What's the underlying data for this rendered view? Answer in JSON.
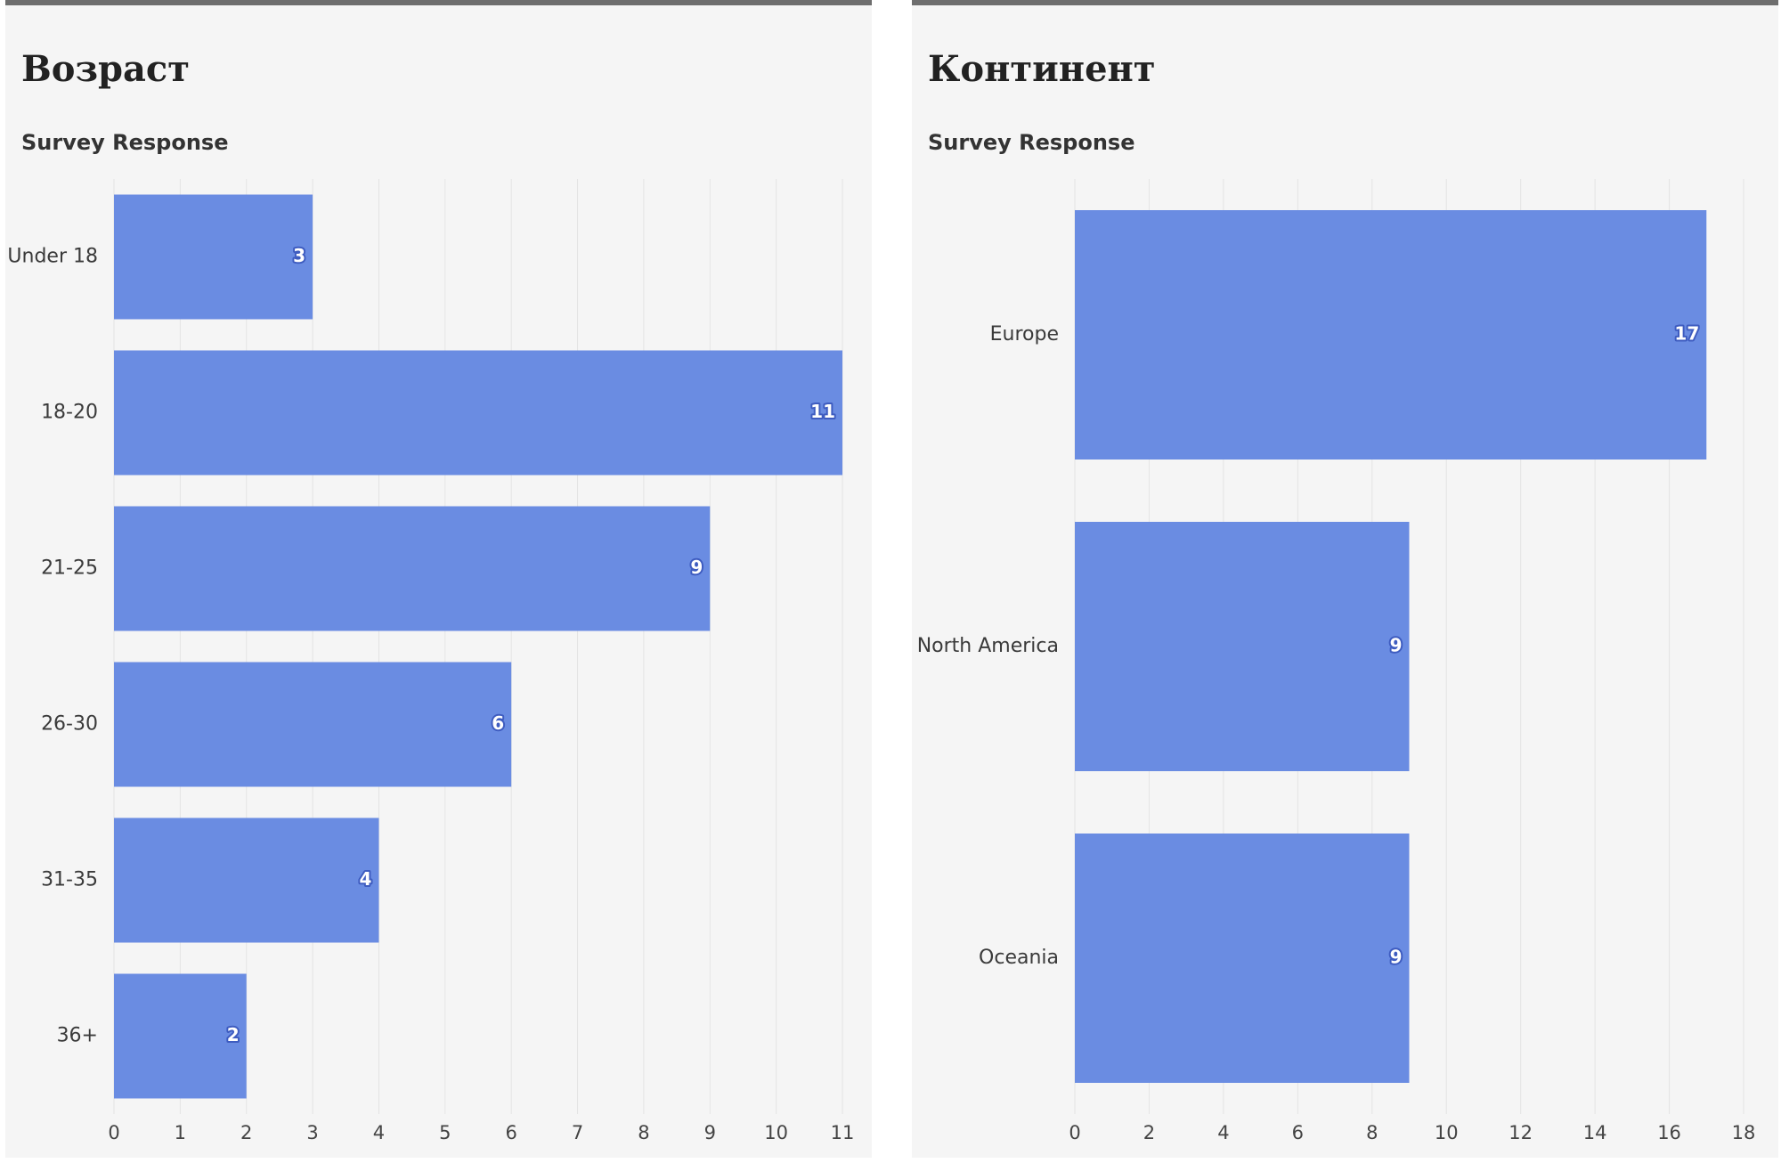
{
  "colors": {
    "bar": "#6a8ce2",
    "grid": "#e4e4e4",
    "panel_bg": "#f5f5f5",
    "panel_border": "#6e6e6e"
  },
  "chart_data": [
    {
      "type": "bar",
      "orientation": "horizontal",
      "title": "Возраст",
      "subtitle": "Survey Response",
      "categories": [
        "Under 18",
        "18-20",
        "21-25",
        "26-30",
        "31-35",
        "36+"
      ],
      "values": [
        3,
        11,
        9,
        6,
        4,
        2
      ],
      "xlim": [
        0,
        11
      ],
      "xticks": [
        0,
        1,
        2,
        3,
        4,
        5,
        6,
        7,
        8,
        9,
        10,
        11
      ],
      "grid": true
    },
    {
      "type": "bar",
      "orientation": "horizontal",
      "title": "Континент",
      "subtitle": "Survey Response",
      "categories": [
        "Europe",
        "North America",
        "Oceania"
      ],
      "values": [
        17,
        9,
        9
      ],
      "xlim": [
        0,
        18
      ],
      "xticks": [
        0,
        2,
        4,
        6,
        8,
        10,
        12,
        14,
        16,
        18
      ],
      "grid": true
    }
  ]
}
